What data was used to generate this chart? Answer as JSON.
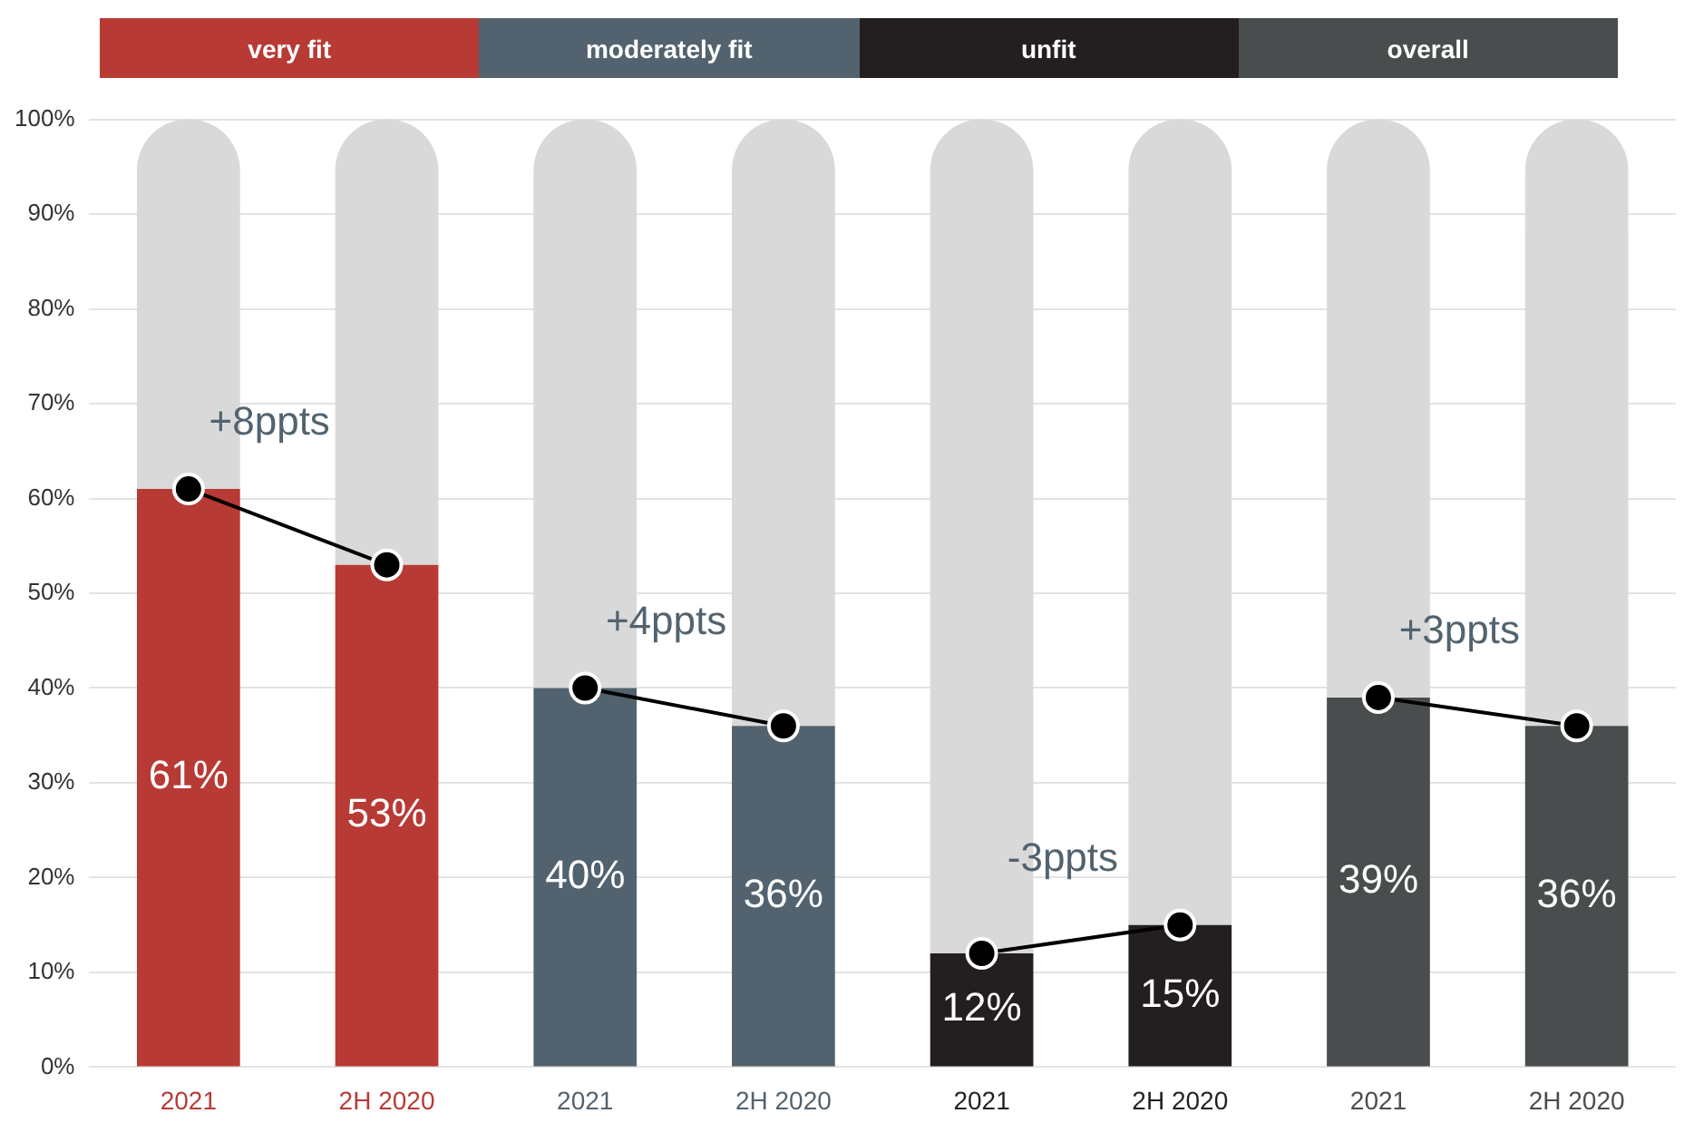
{
  "chart_data": {
    "type": "bar",
    "categories": [
      "2021",
      "2H 2020",
      "2021",
      "2H 2020",
      "2021",
      "2H 2020",
      "2021",
      "2H 2020"
    ],
    "series": [
      {
        "name": "very fit",
        "color": "#b83a35",
        "values": [
          61,
          53,
          null,
          null,
          null,
          null,
          null,
          null
        ],
        "value_labels": [
          "61%",
          "53%",
          null,
          null,
          null,
          null,
          null,
          null
        ]
      },
      {
        "name": "moderately fit",
        "color": "#52636f",
        "values": [
          null,
          null,
          40,
          36,
          null,
          null,
          null,
          null
        ],
        "value_labels": [
          null,
          null,
          "40%",
          "36%",
          null,
          null,
          null,
          null
        ]
      },
      {
        "name": "unfit",
        "color": "#231f20",
        "values": [
          null,
          null,
          null,
          null,
          12,
          15,
          null,
          null
        ],
        "value_labels": [
          null,
          null,
          null,
          null,
          "12%",
          "15%",
          null,
          null
        ]
      },
      {
        "name": "overall",
        "color": "#4a4d4e",
        "values": [
          null,
          null,
          null,
          null,
          null,
          null,
          39,
          36
        ],
        "value_labels": [
          null,
          null,
          null,
          null,
          null,
          null,
          "39%",
          "36%"
        ]
      },
      {
        "color": "#d9d9d9",
        "values": [
          39,
          47,
          60,
          64,
          88,
          85,
          61,
          64
        ]
      },
      {
        "type": "line",
        "color": "#000000",
        "values": [
          61,
          53,
          null,
          null,
          null,
          null,
          null,
          null
        ]
      },
      {
        "type": "line",
        "color": "#000000",
        "values": [
          null,
          null,
          40,
          36,
          null,
          null,
          null,
          null
        ]
      },
      {
        "type": "line",
        "color": "#000000",
        "values": [
          null,
          null,
          null,
          null,
          12,
          15,
          null,
          null
        ]
      },
      {
        "type": "line",
        "color": "#000000",
        "values": [
          null,
          null,
          null,
          null,
          null,
          null,
          39,
          36
        ]
      }
    ],
    "marker": "circle",
    "stacked": true,
    "ylim": [
      0,
      100
    ],
    "yticks": [
      {
        "value": 0,
        "label": "0%"
      },
      {
        "value": 10,
        "label": "10%"
      },
      {
        "value": 20,
        "label": "20%"
      },
      {
        "value": 30,
        "label": "30%"
      },
      {
        "value": 40,
        "label": "40%"
      },
      {
        "value": 50,
        "label": "50%"
      },
      {
        "value": 60,
        "label": "60%"
      },
      {
        "value": 70,
        "label": "70%"
      },
      {
        "value": 80,
        "label": "80%"
      },
      {
        "value": 90,
        "label": "90%"
      },
      {
        "value": 100,
        "label": "100%"
      }
    ],
    "annotations": [
      "+8ppts",
      "+4ppts",
      "-3ppts",
      "+3ppts"
    ],
    "grid": "y",
    "legend": "top"
  }
}
